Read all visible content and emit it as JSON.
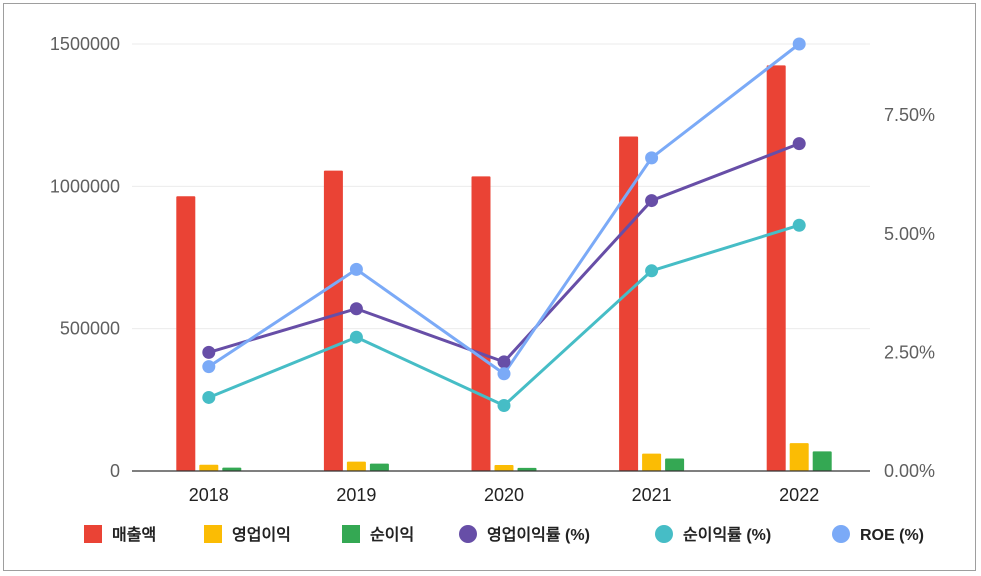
{
  "chart_data": {
    "type": "bar",
    "categories": [
      "2018",
      "2019",
      "2020",
      "2021",
      "2022"
    ],
    "series": [
      {
        "name": "매출액",
        "kind": "bar",
        "axis": "left",
        "color": "#ea4335",
        "values": [
          965000,
          1055000,
          1035000,
          1175000,
          1425000
        ]
      },
      {
        "name": "영업이익",
        "kind": "bar",
        "axis": "left",
        "color": "#fbbc04",
        "values": [
          22000,
          33000,
          21000,
          61000,
          98000
        ]
      },
      {
        "name": "순이익",
        "kind": "bar",
        "axis": "left",
        "color": "#34a853",
        "values": [
          12000,
          26000,
          11000,
          44000,
          69000
        ]
      },
      {
        "name": "영업이익률 (%)",
        "kind": "line",
        "axis": "right",
        "color": "#674ea7",
        "values": [
          2.5,
          3.42,
          2.3,
          5.7,
          6.9
        ]
      },
      {
        "name": "순이익률 (%)",
        "kind": "line",
        "axis": "right",
        "color": "#46bdc6",
        "values": [
          1.55,
          2.82,
          1.38,
          4.22,
          5.18
        ]
      },
      {
        "name": "ROE (%)",
        "kind": "line",
        "axis": "right",
        "color": "#7baaf7",
        "values": [
          2.2,
          4.25,
          2.05,
          6.6,
          9.0
        ]
      }
    ],
    "yaxis_left": {
      "ticks": [
        "0",
        "500000",
        "1000000",
        "1500000"
      ],
      "range": [
        0,
        1500000
      ]
    },
    "yaxis_right": {
      "ticks": [
        "0.00%",
        "2.50%",
        "5.00%",
        "7.50%"
      ],
      "range": [
        0,
        9.0
      ]
    },
    "grid": true,
    "legend_position": "bottom"
  }
}
